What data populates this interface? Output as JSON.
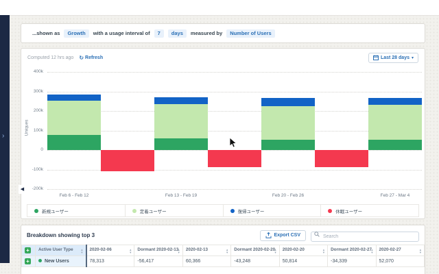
{
  "sidebar": {
    "expand_chevron": "›"
  },
  "filter_bar": {
    "prefix": "...shown as",
    "shown_as": "Growth",
    "interval_text": "with a usage interval of",
    "interval_value": "7",
    "interval_unit": "days",
    "measured_by_text": "measured by",
    "metric": "Number of Users"
  },
  "chart_card": {
    "computed_text": "Computed 12 hrs ago",
    "refresh_label": "Refresh",
    "date_range_label": "Last 28 days",
    "y_axis_title": "Uniques"
  },
  "chart_data": {
    "type": "bar",
    "stacked": true,
    "ylabel": "Uniques",
    "unit": "users, values in thousands (k)",
    "ylim_k": [
      -200,
      400
    ],
    "y_ticks": [
      "400k",
      "300k",
      "200k",
      "100k",
      "0",
      "-100k",
      "-200k"
    ],
    "y_tick_values_k": [
      400,
      300,
      200,
      100,
      0,
      -100,
      -200
    ],
    "x_labels": [
      "Feb 6 - Feb 12",
      "Feb 13 - Feb 19",
      "Feb 20 - Feb 26",
      "Feb 27 - Mar 4"
    ],
    "legend": [
      {
        "label": "新規ユーザー",
        "color": "#2da562"
      },
      {
        "label": "定着ユーザー",
        "color": "#c3e8ae"
      },
      {
        "label": "復帰ユーザー",
        "color": "#1263c6"
      },
      {
        "label": "休眠ユーザー",
        "color": "#f4394f"
      }
    ],
    "series_colors": {
      "new": "#2da562",
      "retained": "#c3e8ae",
      "resurrected": "#1263c6",
      "dormant": "#f4394f"
    },
    "bars": [
      {
        "kind": "stack",
        "x_label": "Feb 6 - Feb 12",
        "segments_k": {
          "new": 78,
          "retained": 174,
          "resurrected": 31
        }
      },
      {
        "kind": "dormant",
        "value_k": -108
      },
      {
        "kind": "stack",
        "x_label": "Feb 13 - Feb 19",
        "segments_k": {
          "new": 60,
          "retained": 174,
          "resurrected": 35
        }
      },
      {
        "kind": "dormant",
        "value_k": -88
      },
      {
        "kind": "stack",
        "x_label": "Feb 20 - Feb 26",
        "segments_k": {
          "new": 51,
          "retained": 173,
          "resurrected": 41
        }
      },
      {
        "kind": "dormant",
        "value_k": -86
      },
      {
        "kind": "stack",
        "x_label": "Feb 27 - Mar 4",
        "segments_k": {
          "new": 52,
          "retained": 179,
          "resurrected": 34
        }
      }
    ]
  },
  "breakdown": {
    "title": "Breakdown showing top 3",
    "export_label": "Export CSV",
    "search_placeholder": "Search",
    "columns": [
      "Active User Type",
      "2020-02-06",
      "Dormant 2020-02-13",
      "2020-02-13",
      "Dormant 2020-02-20",
      "2020-02-20",
      "Dormant 2020-02-27",
      "2020-02-27"
    ],
    "rows": [
      {
        "name": "New Users",
        "dot_color": "#2da562",
        "values": [
          "78,313",
          "-56,417",
          "60,366",
          "-43,248",
          "50,814",
          "-34,339",
          "52,070"
        ]
      }
    ]
  }
}
